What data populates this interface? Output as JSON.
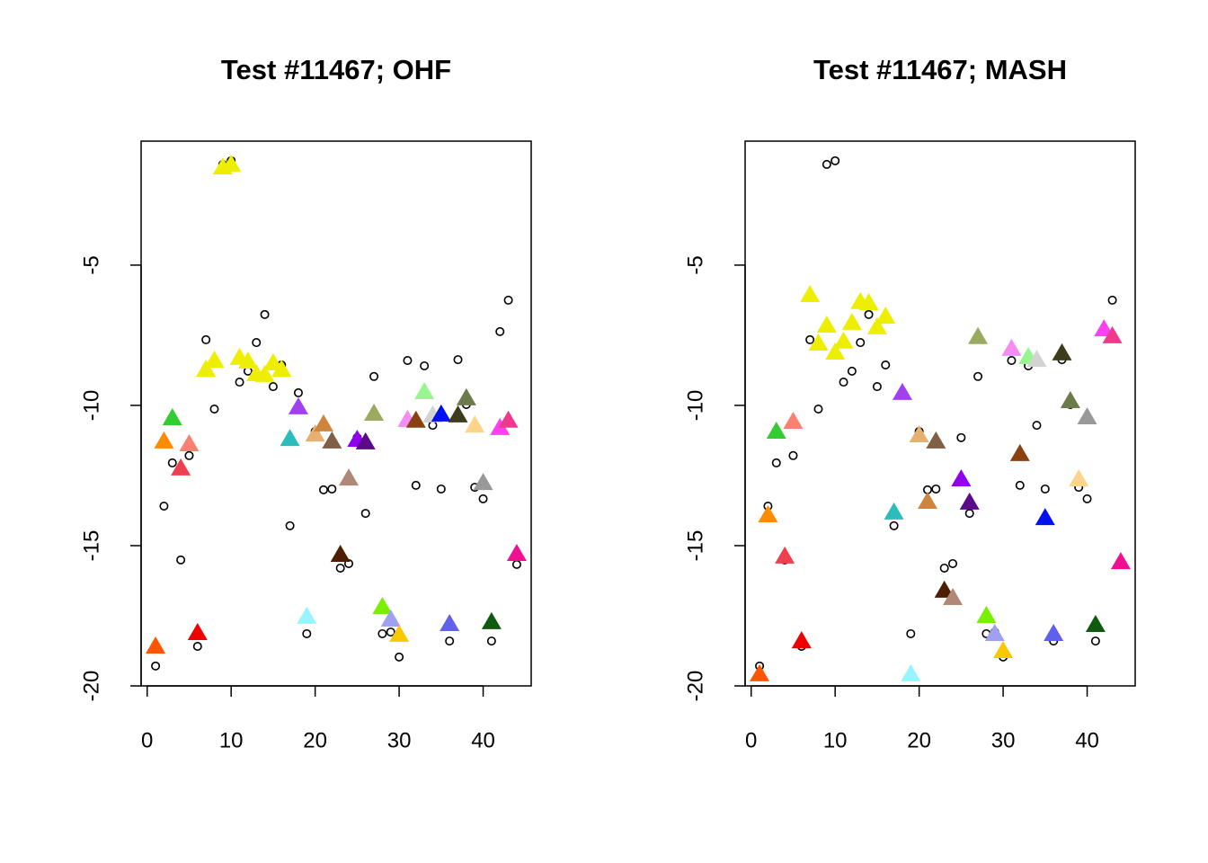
{
  "chart_data": [
    {
      "type": "scatter",
      "title": "Test #11467; OHF",
      "x": [
        1,
        2,
        3,
        4,
        5,
        6,
        7,
        8,
        9,
        10,
        11,
        12,
        13,
        14,
        15,
        16,
        17,
        18,
        19,
        20,
        21,
        22,
        23,
        24,
        25,
        26,
        27,
        28,
        29,
        30,
        31,
        32,
        33,
        34,
        35,
        36,
        37,
        38,
        39,
        40,
        41,
        42,
        43,
        44
      ],
      "xlim": [
        -0.72,
        45.72
      ],
      "xticks": [
        0,
        10,
        20,
        30,
        40
      ],
      "ylim": [
        -20,
        -0.58
      ],
      "yticks": [
        -20,
        -15,
        -10,
        -5
      ],
      "series": [
        {
          "marker": "circle",
          "color": "#000000",
          "values": [
            -19.29,
            -13.59,
            -12.05,
            -15.51,
            -11.79,
            -18.59,
            -7.66,
            -10.13,
            -1.41,
            -1.28,
            -9.17,
            -8.78,
            -7.76,
            -6.76,
            -9.33,
            -8.56,
            -14.29,
            -9.55,
            -18.14,
            -10.93,
            -13.01,
            -12.98,
            -15.8,
            -15.64,
            -11.15,
            -13.85,
            -8.97,
            -18.14,
            -18.08,
            -18.97,
            -8.4,
            -12.85,
            -8.59,
            -10.71,
            -12.98,
            -18.4,
            -8.37,
            -9.97,
            -12.92,
            -13.33,
            -18.4,
            -7.37,
            -6.25,
            -15.67
          ]
        },
        {
          "marker": "triangle",
          "colors": [
            "#FF5500",
            "#FF8C00",
            "#32CD32",
            "#EE4050",
            "#FA8072",
            "#EE0000",
            "#EEEE00",
            "#EEEE00",
            "#EEEE00",
            "#EEEE00",
            "#EEEE00",
            "#EEEE00",
            "#EEEE00",
            "#EEEE00",
            "#EEEE00",
            "#EEEE00",
            "#2BBCBC",
            "#A040EE",
            "#98F5FF",
            "#E8B070",
            "#CD853F",
            "#7F6045",
            "#4D1F00",
            "#B08878",
            "#9000EE",
            "#5C0A8A",
            "#9AAA5E",
            "#7CEE00",
            "#A0A0F0",
            "#F8C800",
            "#F48CF4",
            "#8B4010",
            "#98F590",
            "#D3D3D3",
            "#0010EE",
            "#6060EE",
            "#3C3C1C",
            "#6B7B4B",
            "#FCD48C",
            "#999999",
            "#105A10",
            "#FF40F0",
            "#F0388C",
            "#EE1090"
          ],
          "values": [
            -18.59,
            -11.28,
            -10.45,
            -12.24,
            -11.38,
            -18.11,
            -8.72,
            -8.4,
            -1.51,
            -1.41,
            -8.3,
            -8.43,
            -8.88,
            -8.91,
            -8.49,
            -8.72,
            -11.19,
            -10.06,
            -17.53,
            -11.03,
            -10.67,
            -11.28,
            -15.32,
            -12.6,
            -11.22,
            -11.31,
            -10.29,
            -17.18,
            -17.63,
            -18.17,
            -10.51,
            -10.54,
            -9.52,
            -10.35,
            -10.32,
            -17.79,
            -10.35,
            -9.74,
            -10.71,
            -12.76,
            -17.72,
            -10.8,
            -10.54,
            -15.29
          ]
        }
      ]
    },
    {
      "type": "scatter",
      "title": "Test #11467; MASH",
      "x": [
        1,
        2,
        3,
        4,
        5,
        6,
        7,
        8,
        9,
        10,
        11,
        12,
        13,
        14,
        15,
        16,
        17,
        18,
        19,
        20,
        21,
        22,
        23,
        24,
        25,
        26,
        27,
        28,
        29,
        30,
        31,
        32,
        33,
        34,
        35,
        36,
        37,
        38,
        39,
        40,
        41,
        42,
        43,
        44
      ],
      "xlim": [
        -0.72,
        45.72
      ],
      "xticks": [
        0,
        10,
        20,
        30,
        40
      ],
      "ylim": [
        -20,
        -0.58
      ],
      "yticks": [
        -20,
        -15,
        -10,
        -5
      ],
      "series": [
        {
          "marker": "circle",
          "color": "#000000",
          "values": [
            -19.29,
            -13.59,
            -12.05,
            -15.51,
            -11.79,
            -18.59,
            -7.66,
            -10.13,
            -1.41,
            -1.28,
            -9.17,
            -8.78,
            -7.76,
            -6.76,
            -9.33,
            -8.56,
            -14.29,
            -9.55,
            -18.14,
            -10.93,
            -13.01,
            -12.98,
            -15.8,
            -15.64,
            -11.15,
            -13.85,
            -8.97,
            -18.14,
            -18.08,
            -18.97,
            -8.4,
            -12.85,
            -8.59,
            -10.71,
            -12.98,
            -18.4,
            -8.37,
            -9.97,
            -12.92,
            -13.33,
            -18.4,
            -7.37,
            -6.25,
            -15.67
          ]
        },
        {
          "marker": "triangle",
          "colors": [
            "#FF5500",
            "#FF8C00",
            "#32CD32",
            "#EE4050",
            "#FA8072",
            "#EE0000",
            "#EEEE00",
            "#EEEE00",
            "#EEEE00",
            "#EEEE00",
            "#EEEE00",
            "#EEEE00",
            "#EEEE00",
            "#EEEE00",
            "#EEEE00",
            "#EEEE00",
            "#2BBCBC",
            "#A040EE",
            "#98F5FF",
            "#E8B070",
            "#CD853F",
            "#7F6045",
            "#4D1F00",
            "#B08878",
            "#9000EE",
            "#5C0A8A",
            "#9AAA5E",
            "#7CEE00",
            "#A0A0F0",
            "#F8C800",
            "#F48CF4",
            "#8B4010",
            "#98F590",
            "#D3D3D3",
            "#0010EE",
            "#6060EE",
            "#3C3C1C",
            "#6B7B4B",
            "#FCD48C",
            "#999999",
            "#105A10",
            "#FF40F0",
            "#F0388C",
            "#EE1090"
          ],
          "values": [
            -19.58,
            -13.91,
            -10.93,
            -15.38,
            -10.58,
            -18.4,
            -6.06,
            -7.79,
            -7.15,
            -8.11,
            -7.72,
            -7.05,
            -6.31,
            -6.35,
            -7.21,
            -6.83,
            -13.81,
            -9.55,
            -19.58,
            -11.06,
            -13.43,
            -11.28,
            -16.6,
            -16.86,
            -12.63,
            -13.46,
            -7.56,
            -17.5,
            -18.14,
            -18.75,
            -7.98,
            -11.73,
            -8.27,
            -8.37,
            -14.01,
            -18.14,
            -8.14,
            -9.84,
            -12.63,
            -10.42,
            -17.82,
            -7.28,
            -7.53,
            -15.58
          ]
        }
      ]
    }
  ]
}
